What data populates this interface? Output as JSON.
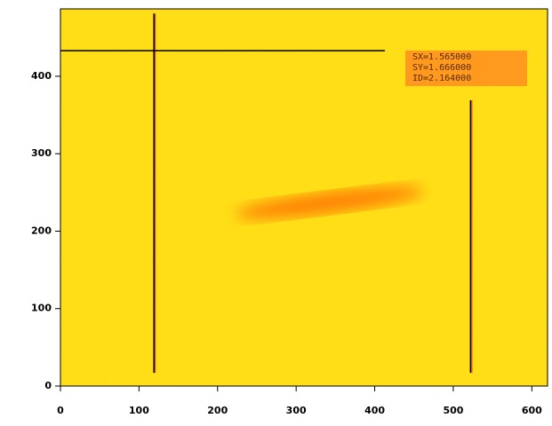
{
  "chart_data": {
    "type": "image",
    "xlim": [
      0,
      620
    ],
    "ylim": [
      0,
      487
    ],
    "xticks": [
      0,
      100,
      200,
      300,
      400,
      500,
      600
    ],
    "yticks": [
      0,
      100,
      200,
      300,
      400
    ],
    "background_color": "#ffe11a",
    "cursor_color": "#000000",
    "vertical_cursors": [
      {
        "x": 119,
        "y": [
          17,
          481
        ]
      },
      {
        "x": 522,
        "y": [
          17,
          369
        ]
      }
    ],
    "horizontal_cursors": [
      {
        "y": 433,
        "x": [
          0,
          413
        ]
      }
    ],
    "streak": {
      "x": [
        223,
        462
      ],
      "y": [
        222,
        252
      ],
      "color": "#ff6a00"
    },
    "info_box": {
      "color": "#ff9a1f",
      "lines": [
        "SX=1.565000",
        "SY=1.666000",
        "ID=2.164000"
      ]
    }
  }
}
